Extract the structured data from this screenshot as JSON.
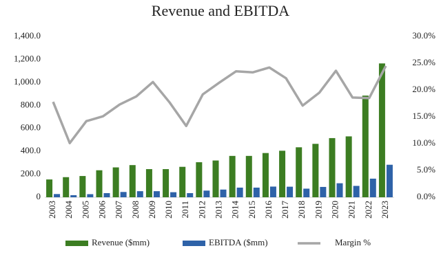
{
  "chart_data": {
    "type": "bar_line",
    "title": "Revenue and EBITDA",
    "categories": [
      "2003",
      "2004",
      "2005",
      "2006",
      "2007",
      "2008",
      "2009",
      "2010",
      "2011",
      "2012",
      "2013",
      "2014",
      "2015",
      "2016",
      "2017",
      "2018",
      "2019",
      "2020",
      "2021",
      "2022",
      "2023"
    ],
    "series": [
      {
        "name": "Revenue ($mm)",
        "type": "bar",
        "color": "#3c7d22",
        "values": [
          155,
          175,
          185,
          235,
          260,
          280,
          245,
          245,
          265,
          305,
          320,
          360,
          360,
          385,
          405,
          435,
          465,
          515,
          530,
          885,
          1165
        ]
      },
      {
        "name": "EBITDA ($mm)",
        "type": "bar",
        "color": "#2e62a8",
        "values": [
          28,
          18,
          27,
          36,
          46,
          53,
          53,
          44,
          36,
          58,
          67,
          84,
          84,
          93,
          92,
          75,
          90,
          122,
          99,
          162,
          283
        ]
      },
      {
        "name": "Margin %",
        "type": "line",
        "axis": "y2",
        "color": "#a6a6a6",
        "values": [
          17.8,
          10.1,
          14.2,
          15.1,
          17.3,
          18.8,
          21.5,
          17.7,
          13.3,
          19.2,
          21.4,
          23.5,
          23.3,
          24.2,
          22.2,
          17.1,
          19.5,
          23.6,
          18.6,
          18.5,
          24.5
        ]
      }
    ],
    "ylim": [
      0,
      1400
    ],
    "yticks": [
      {
        "value": 0,
        "label": "0"
      },
      {
        "value": 200,
        "label": "200.0"
      },
      {
        "value": 400,
        "label": "400.0"
      },
      {
        "value": 600,
        "label": "600.0"
      },
      {
        "value": 800,
        "label": "800.0"
      },
      {
        "value": 1000,
        "label": "1,000.0"
      },
      {
        "value": 1200,
        "label": "1,200.0"
      },
      {
        "value": 1400,
        "label": "1,400.0"
      }
    ],
    "y2lim": [
      0,
      30
    ],
    "y2ticks": [
      {
        "value": 0,
        "label": "0.0%"
      },
      {
        "value": 5,
        "label": "5.0%"
      },
      {
        "value": 10,
        "label": "10.0%"
      },
      {
        "value": 15,
        "label": "15.0%"
      },
      {
        "value": 20,
        "label": "20.0%"
      },
      {
        "value": 25,
        "label": "25.0%"
      },
      {
        "value": 30,
        "label": "30.0%"
      }
    ],
    "legend": "bottom",
    "grid": false
  }
}
